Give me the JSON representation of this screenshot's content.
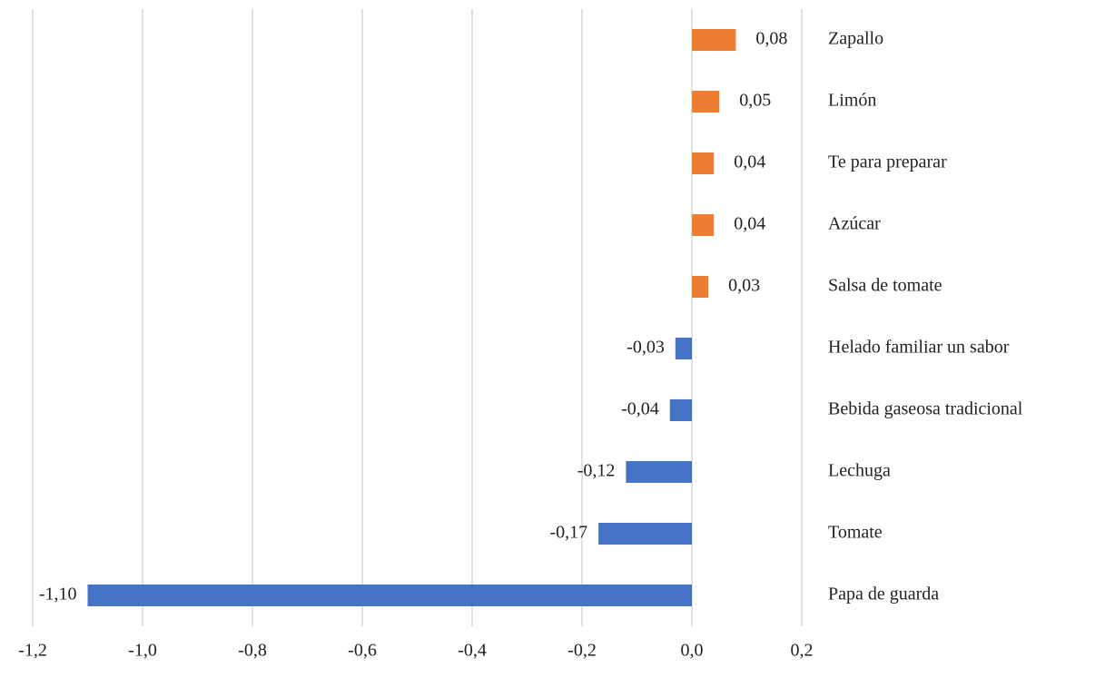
{
  "chart_data": {
    "type": "bar",
    "orientation": "horizontal",
    "categories": [
      "Zapallo",
      "Limón",
      "Te para preparar",
      "Azúcar",
      "Salsa de tomate",
      "Helado familiar un sabor",
      "Bebida gaseosa tradicional",
      "Lechuga",
      "Tomate",
      "Papa de guarda"
    ],
    "values": [
      0.08,
      0.05,
      0.04,
      0.04,
      0.03,
      -0.03,
      -0.04,
      -0.12,
      -0.17,
      -1.1
    ],
    "value_labels": [
      "0,08",
      "0,05",
      "0,04",
      "0,04",
      "0,03",
      "-0,03",
      "-0,04",
      "-0,12",
      "-0,17",
      "-1,10"
    ],
    "colors": [
      "#ed7d31",
      "#ed7d31",
      "#ed7d31",
      "#ed7d31",
      "#ed7d31",
      "#4472c4",
      "#4472c4",
      "#4472c4",
      "#4472c4",
      "#4472c4"
    ],
    "xlim": [
      -1.2,
      0.2
    ],
    "xticks": [
      {
        "value": -1.2,
        "label": "-1,2"
      },
      {
        "value": -1.0,
        "label": "-1,0"
      },
      {
        "value": -0.8,
        "label": "-0,8"
      },
      {
        "value": -0.6,
        "label": "-0,6"
      },
      {
        "value": -0.4,
        "label": "-0,4"
      },
      {
        "value": -0.2,
        "label": "-0,2"
      },
      {
        "value": 0.0,
        "label": "0,0"
      },
      {
        "value": 0.2,
        "label": "0,2"
      }
    ],
    "grid": true
  }
}
